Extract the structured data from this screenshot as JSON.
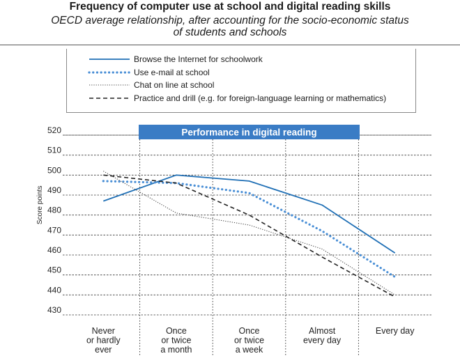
{
  "title": "Frequency of computer use at school and digital reading skills",
  "subtitle_line1": "OECD average relationship, after accounting for the socio-economic status",
  "subtitle_line2": "of students and schools",
  "chart_data": {
    "type": "line",
    "banner": "Performance in digital reading",
    "ylabel": "Score points",
    "ylim": [
      430,
      520
    ],
    "yticks": [
      430,
      440,
      450,
      460,
      470,
      480,
      490,
      500,
      510,
      520
    ],
    "categories": [
      [
        "Never",
        "or hardly",
        "ever"
      ],
      [
        "Once",
        "or twice",
        "a month"
      ],
      [
        "Once",
        "or twice",
        "a week"
      ],
      [
        "Almost",
        "every day"
      ],
      [
        "Every day"
      ]
    ],
    "series": [
      {
        "name": "Browse the Internet for schoolwork",
        "values": [
          487,
          500,
          497,
          485,
          461
        ],
        "color": "#1f6fb5",
        "style": "solid"
      },
      {
        "name": "Use e-mail at school",
        "values": [
          497,
          496,
          491,
          472,
          449
        ],
        "color": "#4a8fd6",
        "style": "dotted-thick"
      },
      {
        "name": "Chat on line at school",
        "values": [
          502,
          481,
          475,
          463,
          440
        ],
        "color": "#444444",
        "style": "dotted-thin"
      },
      {
        "name": "Practice and drill (e.g. for foreign-language learning or mathematics)",
        "values": [
          500,
          496,
          480,
          459,
          439
        ],
        "color": "#222222",
        "style": "dashed"
      }
    ],
    "grid": true,
    "legend_position": "top"
  }
}
